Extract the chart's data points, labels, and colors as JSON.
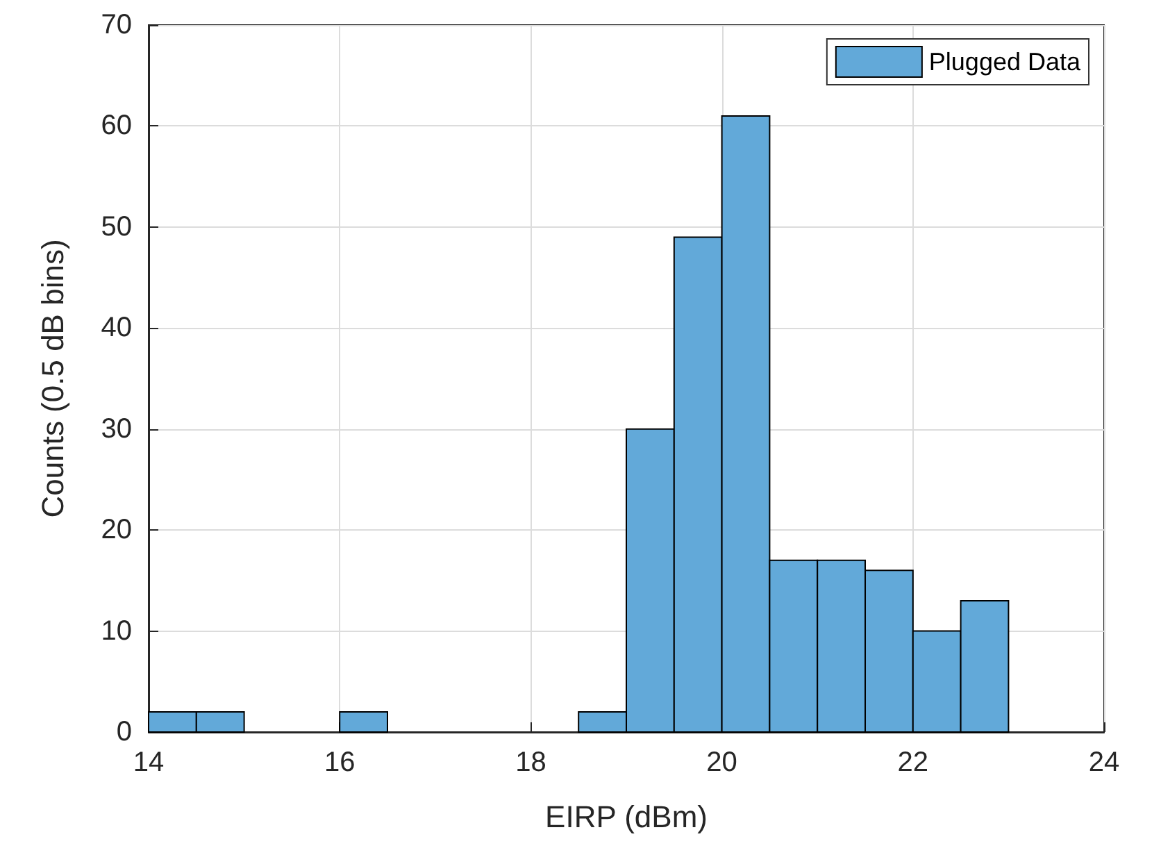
{
  "chart_data": {
    "type": "histogram",
    "xlabel": "EIRP (dBm)",
    "ylabel": "Counts (0.5 dB bins)",
    "bins": [
      14,
      14.5,
      15,
      15.5,
      16,
      16.5,
      17,
      17.5,
      18,
      18.5,
      19,
      19.5,
      20,
      20.5,
      21,
      21.5,
      22,
      22.5,
      23
    ],
    "series": [
      {
        "name": "Plugged Data",
        "color": "#62a9d9",
        "values": [
          2,
          2,
          0,
          0,
          2,
          0,
          0,
          0,
          0,
          2,
          30,
          49,
          61,
          17,
          17,
          16,
          10,
          13
        ]
      }
    ],
    "xlim": [
      14,
      24
    ],
    "xticks": [
      14,
      16,
      18,
      20,
      22,
      24
    ],
    "ylim": [
      0,
      70
    ],
    "yticks": [
      0,
      10,
      20,
      30,
      40,
      50,
      60,
      70
    ],
    "grid": true,
    "legend": "top right"
  }
}
